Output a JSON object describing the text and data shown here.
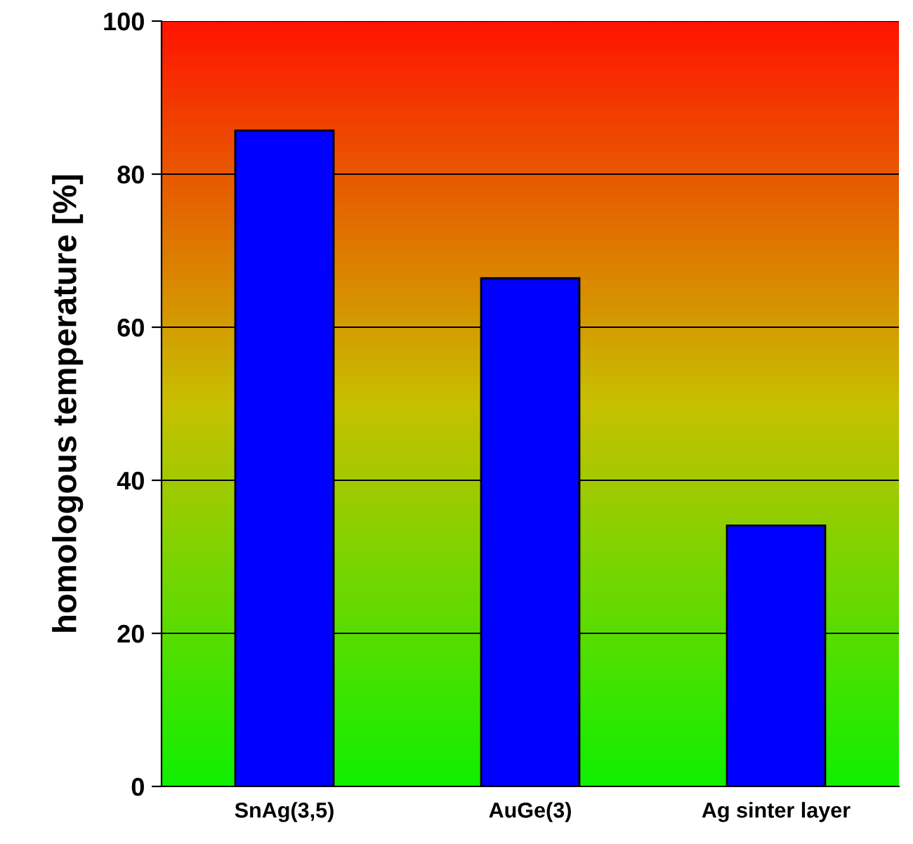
{
  "chart_data": {
    "type": "bar",
    "categories": [
      "SnAg(3,5)",
      "AuGe(3)",
      "Ag sinter layer"
    ],
    "values": [
      85.7,
      66.4,
      34.1
    ],
    "color": "#0000ff",
    "ylabel": "homologous temperature [%]",
    "ylim": [
      0,
      100
    ],
    "yticks": [
      0,
      20,
      40,
      60,
      80,
      100
    ],
    "grid": "y"
  }
}
